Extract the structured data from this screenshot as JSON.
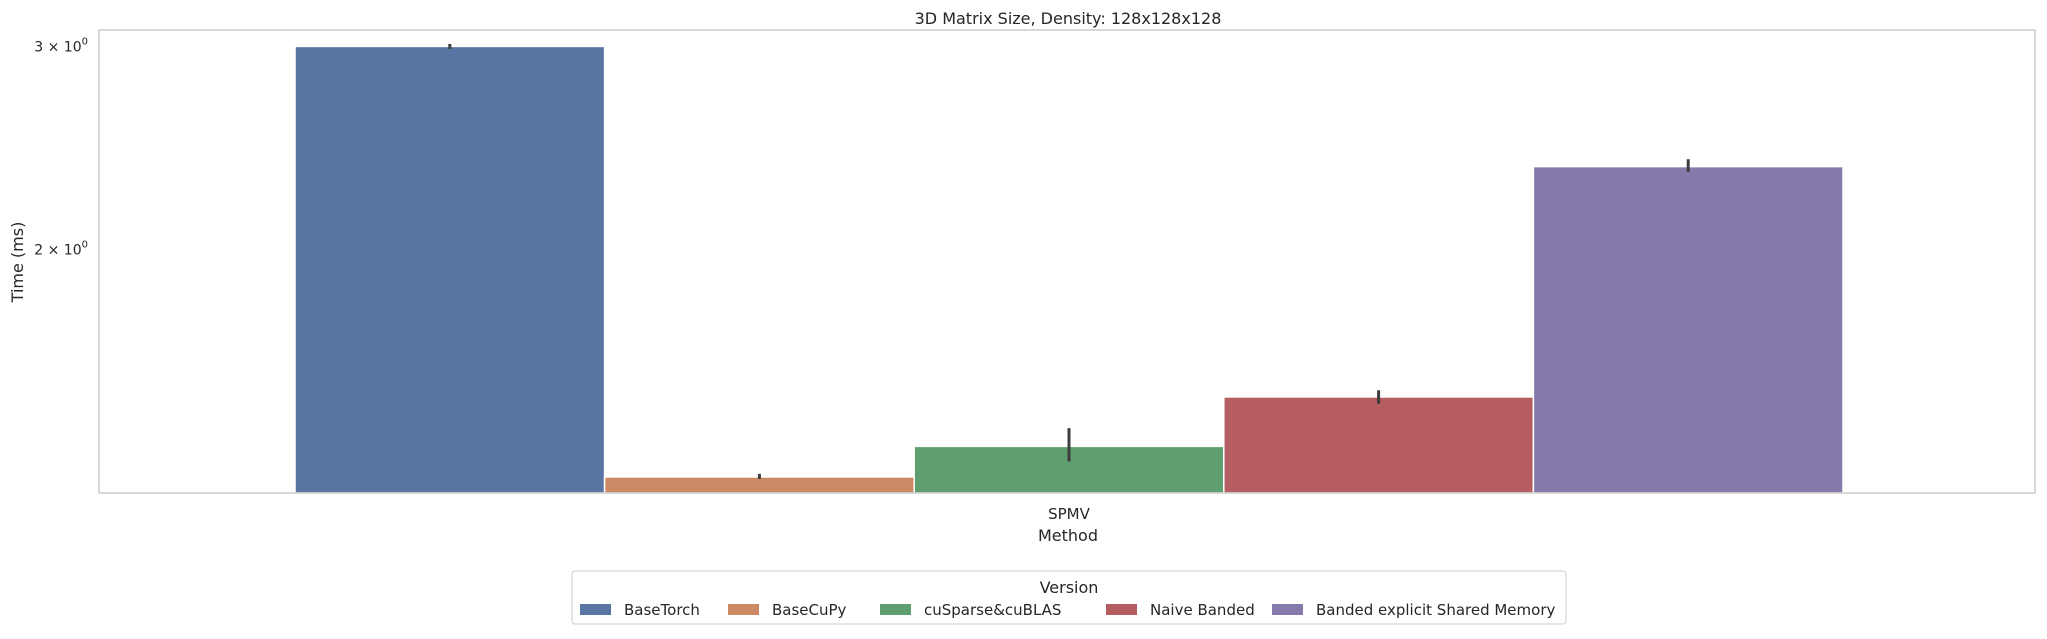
{
  "chart_data": {
    "type": "bar",
    "title": "3D Matrix Size, Density: 128x128x128",
    "xlabel": "Method",
    "ylabel": "Time (ms)",
    "categories": [
      "SPMV"
    ],
    "yscale": "log",
    "ylim": [
      1.23,
      3.1
    ],
    "yticks": [
      {
        "value": 3,
        "mantissa": "3",
        "base": "10",
        "exp": "0"
      },
      {
        "value": 2,
        "mantissa": "2",
        "base": "10",
        "exp": "0"
      }
    ],
    "grid": false,
    "legend": {
      "title": "Version",
      "placement": "bottom-center"
    },
    "series": [
      {
        "name": "BaseTorch",
        "color": "#5975a4",
        "values": [
          3.0
        ],
        "err_low": [
          2.985
        ],
        "err_high": [
          3.015
        ]
      },
      {
        "name": "BaseCuPy",
        "color": "#cc8963",
        "values": [
          1.27
        ],
        "err_low": [
          1.265
        ],
        "err_high": [
          1.278
        ]
      },
      {
        "name": "cuSparse&cuBLAS",
        "color": "#5f9e6e",
        "values": [
          1.35
        ],
        "err_low": [
          1.31
        ],
        "err_high": [
          1.4
        ]
      },
      {
        "name": "Naive Banded",
        "color": "#b55d60",
        "values": [
          1.49
        ],
        "err_low": [
          1.47
        ],
        "err_high": [
          1.51
        ]
      },
      {
        "name": "Banded explicit Shared Memory",
        "color": "#857aab",
        "values": [
          2.36
        ],
        "err_low": [
          2.335
        ],
        "err_high": [
          2.395
        ]
      }
    ]
  }
}
